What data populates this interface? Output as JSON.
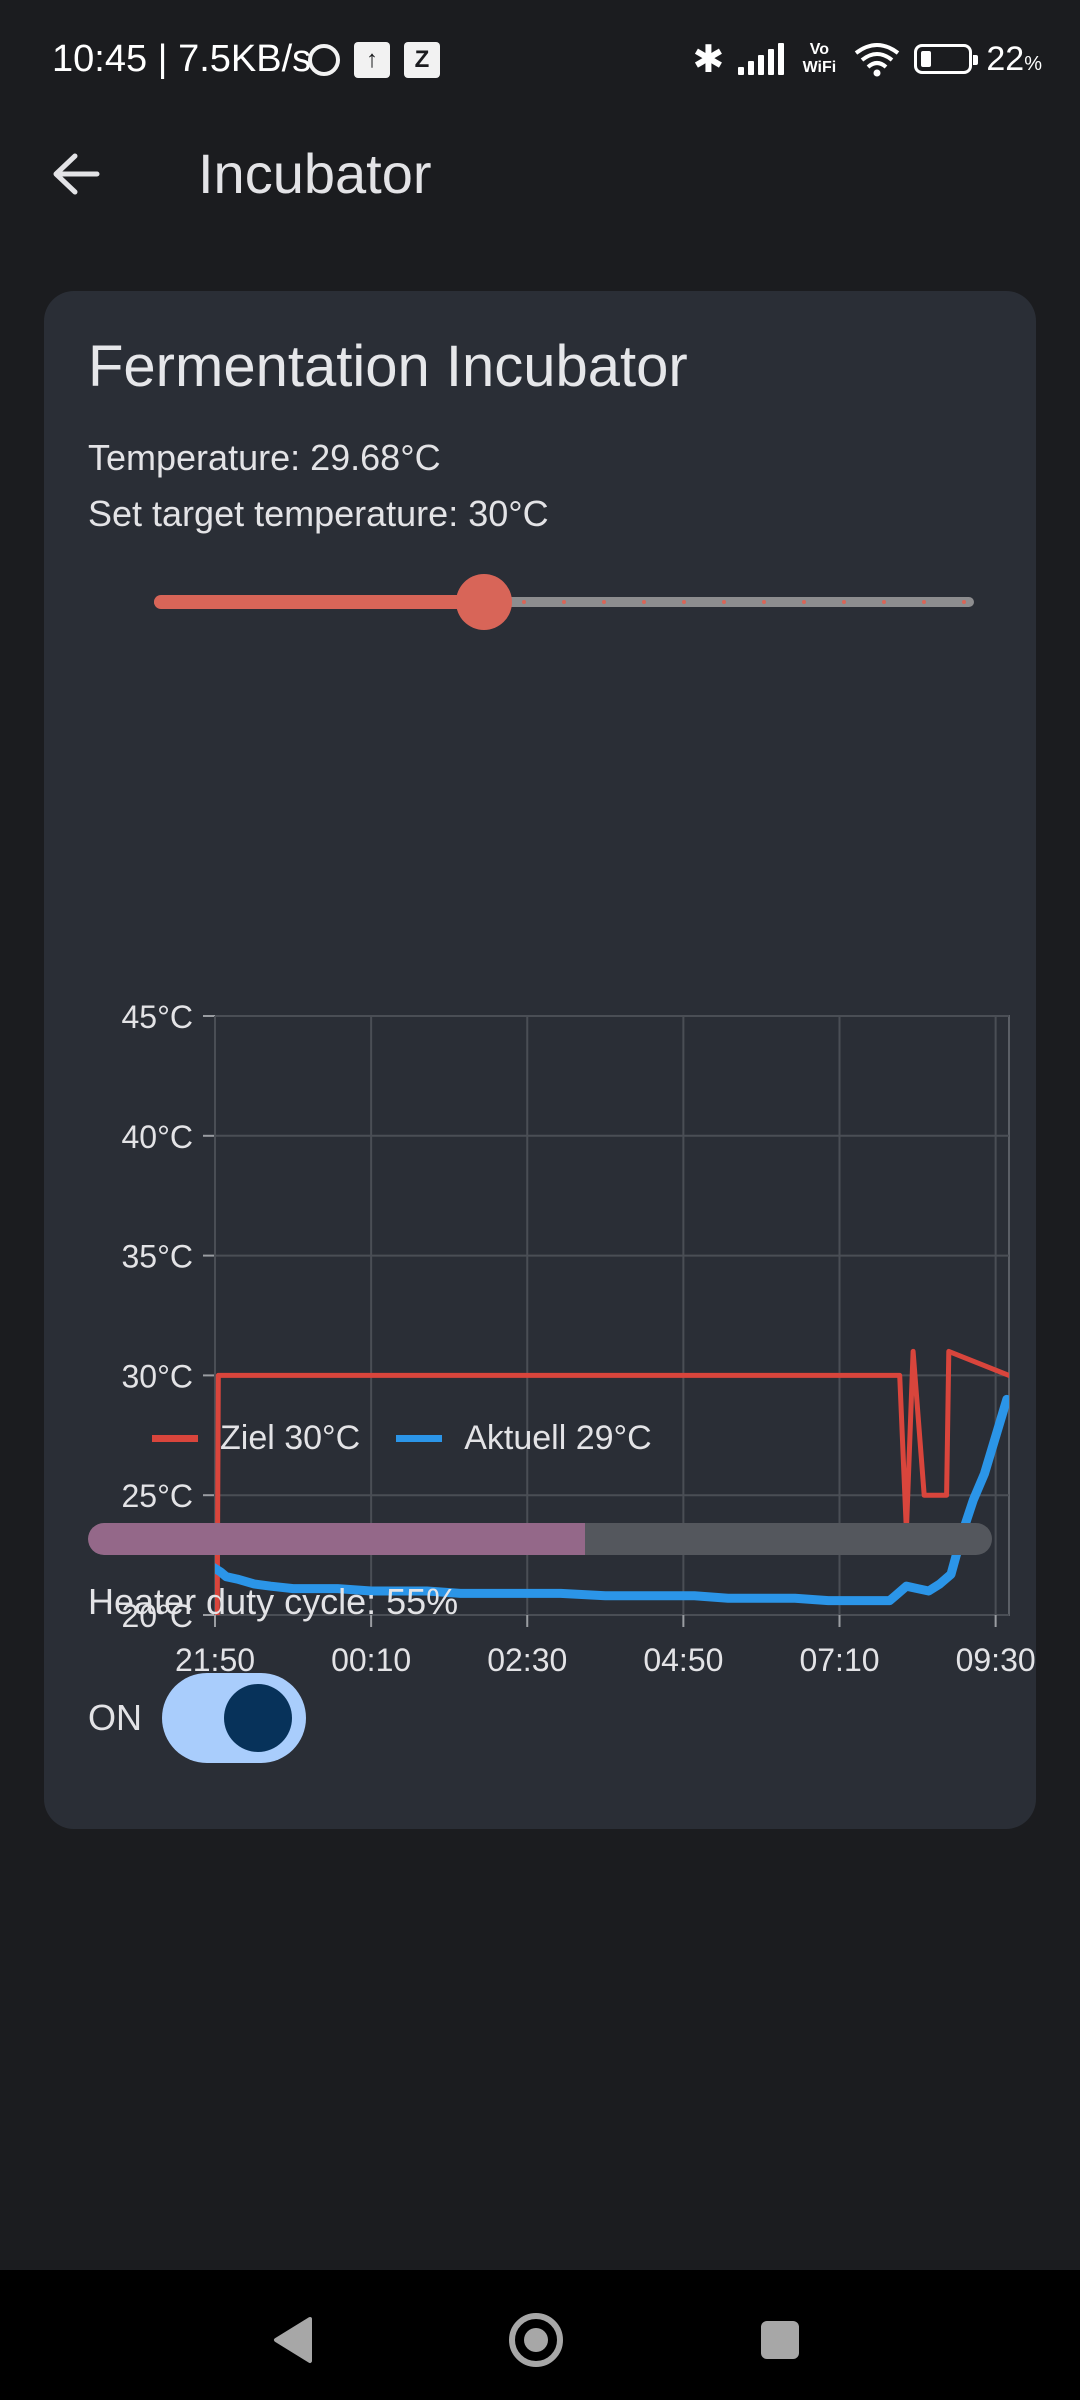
{
  "status_bar": {
    "time": "10:45 | 7.5KB/s",
    "vowifi": "Vo WiFi",
    "battery": "22",
    "battery_unit": "%"
  },
  "app_bar": {
    "title": "Incubator",
    "back_icon": "arrow-back-icon"
  },
  "card": {
    "title": "Fermentation Incubator",
    "temperature": "Temperature: 29.68°C",
    "target": "Set target temperature: 30°C",
    "slider": {
      "value": 30,
      "min": 22,
      "max": 42,
      "step": 1
    },
    "heater_duty": {
      "text": "Heater duty cycle: 55%",
      "value": 0.55
    },
    "switch": {
      "label": "ON",
      "on": true
    }
  },
  "colors": {
    "accent_red": "#d9453c",
    "accent_blue": "#2b95e8",
    "switch_track": "#a9cdfc",
    "progress_fill": "#946889"
  },
  "chart_data": {
    "type": "line",
    "x_ticks": [
      "21:50",
      "00:10",
      "02:30",
      "04:50",
      "07:10",
      "09:30"
    ],
    "y_ticks": [
      "20°C",
      "25°C",
      "30°C",
      "35°C",
      "40°C",
      "45°C"
    ],
    "ylim": [
      20,
      45
    ],
    "grid": true,
    "legend_position": "bottom",
    "series": [
      {
        "name": "Ziel 30°C",
        "color": "#d9453c",
        "x": [
          "21:50",
          "21:52",
          "21:53",
          "07:52",
          "07:58",
          "08:04",
          "08:10",
          "08:16",
          "08:26",
          "08:34",
          "08:40",
          "08:46",
          "08:48",
          "09:42"
        ],
        "values": [
          20,
          20,
          30,
          30,
          30,
          30,
          23.5,
          31,
          25,
          25,
          25,
          25,
          31,
          30
        ]
      },
      {
        "name": "Aktuell 29°C",
        "color": "#2b95e8",
        "x": [
          "21:48",
          "21:55",
          "22:00",
          "22:10",
          "22:25",
          "22:40",
          "23:00",
          "23:40",
          "00:10",
          "00:30",
          "01:00",
          "01:30",
          "02:00",
          "03:00",
          "03:40",
          "05:00",
          "05:30",
          "06:00",
          "06:10",
          "06:30",
          "07:00",
          "07:30",
          "07:55",
          "08:00",
          "08:10",
          "08:20",
          "08:30",
          "08:40",
          "08:50",
          "09:00",
          "09:10",
          "09:20",
          "09:40"
        ],
        "values": [
          22,
          21.8,
          21.6,
          21.5,
          21.3,
          21.2,
          21.1,
          21.1,
          21.0,
          21.0,
          21.0,
          20.9,
          20.9,
          20.9,
          20.8,
          20.8,
          20.7,
          20.7,
          20.7,
          20.7,
          20.6,
          20.6,
          20.6,
          20.8,
          21.2,
          21.1,
          21.0,
          21.3,
          21.7,
          23.4,
          24.8,
          25.9,
          29.0
        ]
      }
    ]
  },
  "nav_bar": {
    "back": "triangle-back-icon",
    "home": "circle-home-icon",
    "recents": "square-recents-icon"
  }
}
